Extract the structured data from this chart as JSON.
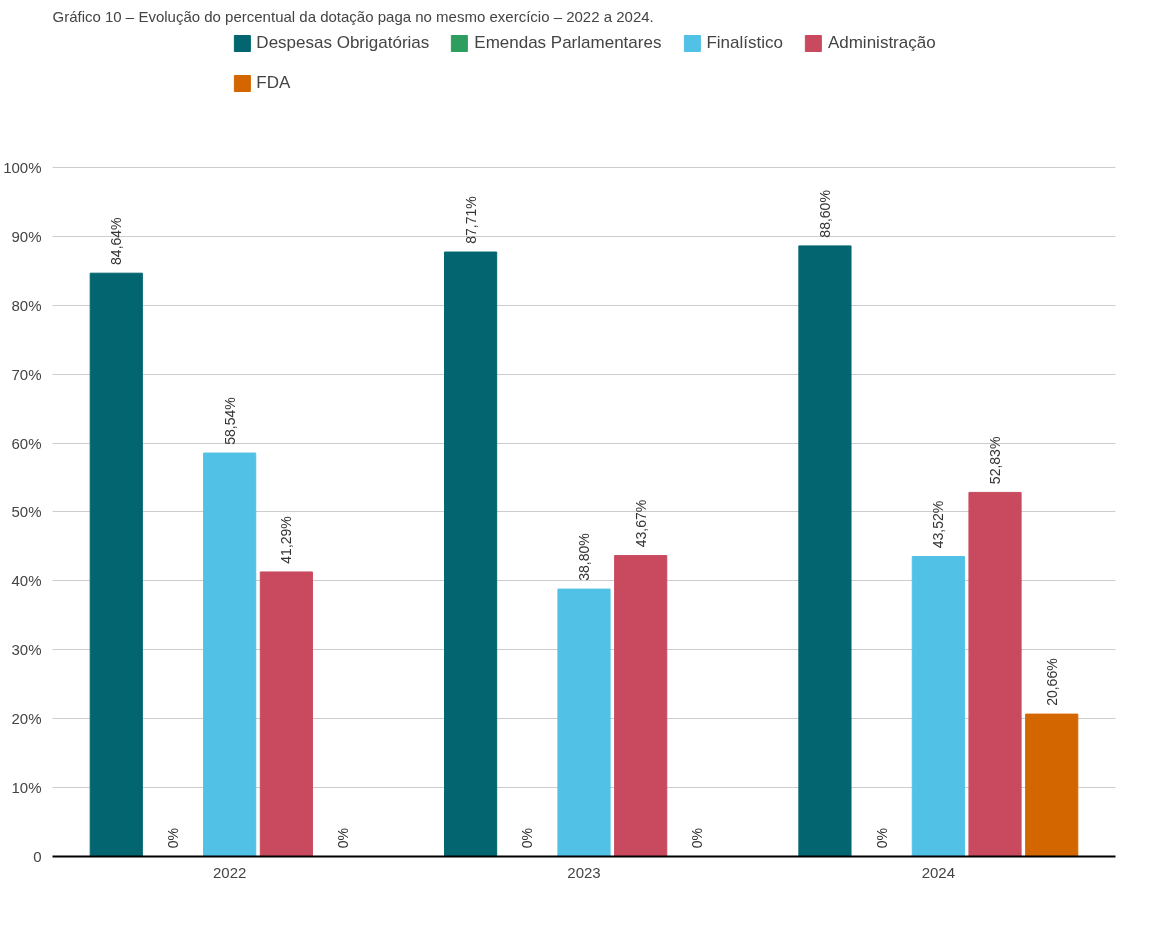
{
  "chart_data": {
    "type": "bar",
    "title": "Gráfico 10 – Evolução do percentual da dotação paga no mesmo exercício – 2022 a 2024.",
    "categories": [
      "2022",
      "2023",
      "2024"
    ],
    "series": [
      {
        "name": "Despesas Obrigatórias",
        "color": "#02656f",
        "values": [
          84.64,
          87.71,
          88.6
        ],
        "value_labels": [
          "84,64%",
          "87,71%",
          "88,60%"
        ]
      },
      {
        "name": "Emendas Parlamentares",
        "color": "#2e9e5e",
        "values": [
          0,
          0,
          0
        ],
        "value_labels": [
          "0%",
          "0%",
          "0%"
        ]
      },
      {
        "name": "Finalístico",
        "color": "#52c1e6",
        "values": [
          58.54,
          38.8,
          43.52
        ],
        "value_labels": [
          "58,54%",
          "38,80%",
          "43,52%"
        ]
      },
      {
        "name": "Administração",
        "color": "#c94a5f",
        "values": [
          41.29,
          43.67,
          52.83
        ],
        "value_labels": [
          "41,29%",
          "43,67%",
          "52,83%"
        ]
      },
      {
        "name": "FDA",
        "color": "#d46600",
        "values": [
          0,
          0,
          20.66
        ],
        "value_labels": [
          "0%",
          "0%",
          "20,66%"
        ]
      }
    ],
    "ylim": [
      0,
      100
    ],
    "yticks": [
      {
        "value": 0,
        "label": "0"
      },
      {
        "value": 10,
        "label": "10%"
      },
      {
        "value": 20,
        "label": "20%"
      },
      {
        "value": 30,
        "label": "30%"
      },
      {
        "value": 40,
        "label": "40%"
      },
      {
        "value": 50,
        "label": "50%"
      },
      {
        "value": 60,
        "label": "60%"
      },
      {
        "value": 70,
        "label": "70%"
      },
      {
        "value": 80,
        "label": "80%"
      },
      {
        "value": 90,
        "label": "90%"
      },
      {
        "value": 100,
        "label": "100%"
      }
    ],
    "grid": "y",
    "legend": "top"
  }
}
